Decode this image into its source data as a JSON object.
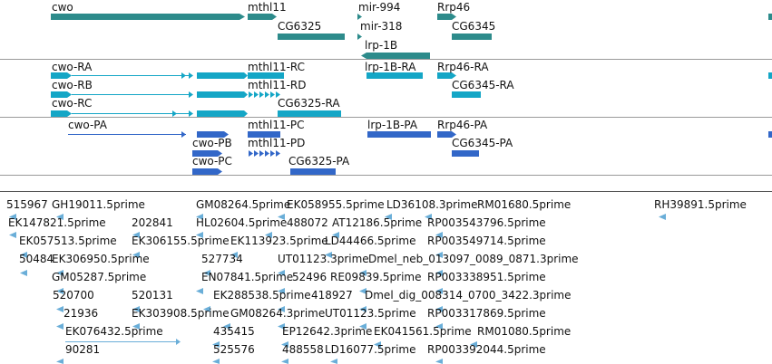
{
  "colors": {
    "gene": "#2d8b8b",
    "transcript_a": "#14a6c6",
    "transcript_b": "#3267c8",
    "est": "#6aaed8",
    "separator": "#9a9a9a"
  },
  "tracks": {
    "genes": [
      {
        "label": "cwo"
      },
      {
        "label": "mthl11"
      },
      {
        "label": "mir-994"
      },
      {
        "label": "Rrp46"
      },
      {
        "label": "CG6325"
      },
      {
        "label": "mir-318"
      },
      {
        "label": "CG6345"
      },
      {
        "label": "lrp-1B"
      }
    ],
    "transcripts_a": [
      {
        "label": "cwo-RA"
      },
      {
        "label": "mthl11-RC"
      },
      {
        "label": "lrp-1B-RA"
      },
      {
        "label": "Rrp46-RA"
      },
      {
        "label": "cwo-RB"
      },
      {
        "label": "mthl11-RD"
      },
      {
        "label": "CG6345-RA"
      },
      {
        "label": "cwo-RC"
      },
      {
        "label": "CG6325-RA"
      }
    ],
    "transcripts_b": [
      {
        "label": "cwo-PA"
      },
      {
        "label": "mthl11-PC"
      },
      {
        "label": "lrp-1B-PA"
      },
      {
        "label": "Rrp46-PA"
      },
      {
        "label": "cwo-PB"
      },
      {
        "label": "mthl11-PD"
      },
      {
        "label": "CG6345-PA"
      },
      {
        "label": "cwo-PC"
      },
      {
        "label": "CG6325-PA"
      }
    ],
    "ests": [
      {
        "label": "515967"
      },
      {
        "label": "GH19011.5prime"
      },
      {
        "label": "GM08264.5prime"
      },
      {
        "label": "EK058955.5prime"
      },
      {
        "label": "LD36108.3prime"
      },
      {
        "label": "RM01680.5prime"
      },
      {
        "label": "RH39891.5prime"
      },
      {
        "label": "EK147821.5prime"
      },
      {
        "label": "202841"
      },
      {
        "label": "HL02604.5prime"
      },
      {
        "label": "488072"
      },
      {
        "label": "AT12186.5prime"
      },
      {
        "label": "RP003543796.5prime"
      },
      {
        "label": "EK057513.5prime"
      },
      {
        "label": "EK306155.5prime"
      },
      {
        "label": "EK113923.5prime"
      },
      {
        "label": "LD44466.5prime"
      },
      {
        "label": "RP003549714.5prime"
      },
      {
        "label": "50484"
      },
      {
        "label": "EK306950.5prime"
      },
      {
        "label": "527734"
      },
      {
        "label": "UT01123.3prime"
      },
      {
        "label": "Dmel_neb_013097_0089_0871.3prime"
      },
      {
        "label": "GM05287.5prime"
      },
      {
        "label": "EN07841.5prime"
      },
      {
        "label": "52496"
      },
      {
        "label": "RE09839.5prime"
      },
      {
        "label": "RP003338951.5prime"
      },
      {
        "label": "520700"
      },
      {
        "label": "520131"
      },
      {
        "label": "EK288538.5prime"
      },
      {
        "label": "418927"
      },
      {
        "label": "Dmel_dig_008314_0700_3422.3prime"
      },
      {
        "label": "21936"
      },
      {
        "label": "EK303908.5prime"
      },
      {
        "label": "GM08264.3prime"
      },
      {
        "label": "UT01123.5prime"
      },
      {
        "label": "RP003317869.5prime"
      },
      {
        "label": "EK076432.5prime"
      },
      {
        "label": "435415"
      },
      {
        "label": "EP12642.3prime"
      },
      {
        "label": "EK041561.5prime"
      },
      {
        "label": "RM01080.5prime"
      },
      {
        "label": "90281"
      },
      {
        "label": "525576"
      },
      {
        "label": "488558"
      },
      {
        "label": "LD16077.5prime"
      },
      {
        "label": "RP003392044.5prime"
      }
    ]
  }
}
